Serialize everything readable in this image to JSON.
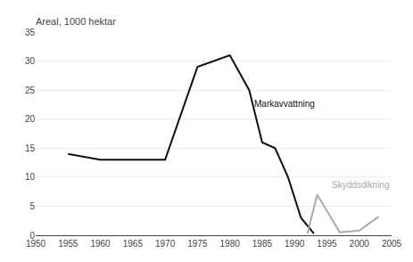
{
  "chart_data": {
    "type": "line",
    "title": "Areal, 1000 hektar",
    "xlim": [
      1950,
      2005
    ],
    "xticks": [
      1950,
      1955,
      1960,
      1965,
      1970,
      1975,
      1980,
      1985,
      1990,
      1995,
      2000,
      2005
    ],
    "ylim": [
      0,
      35
    ],
    "yticks": [
      0,
      5,
      10,
      15,
      20,
      25,
      30,
      35
    ],
    "grid": true,
    "series": [
      {
        "color": "#111111",
        "x": [
          1955,
          1960,
          1965,
          1970,
          1975,
          1980,
          1983,
          1985,
          1987,
          1989,
          1991,
          1993
        ],
        "values": [
          14.0,
          13.0,
          13.0,
          13.0,
          29.0,
          31.0,
          25.0,
          16.0,
          15.0,
          10.0,
          3.0,
          0.3
        ]
      },
      {
        "color": "#aaaaaa",
        "x": [
          1992,
          1993.5,
          1997,
          2000,
          2003
        ],
        "values": [
          0.3,
          7.0,
          0.5,
          0.8,
          3.2
        ]
      }
    ],
    "annotations": [
      {
        "text": "Markavvattning",
        "x": 1983.5,
        "y": 21.5,
        "color": "#111111"
      },
      {
        "text": "Skyddsdikning",
        "x": 1995.5,
        "y": 7.5,
        "color": "#aaaaaa"
      }
    ]
  }
}
